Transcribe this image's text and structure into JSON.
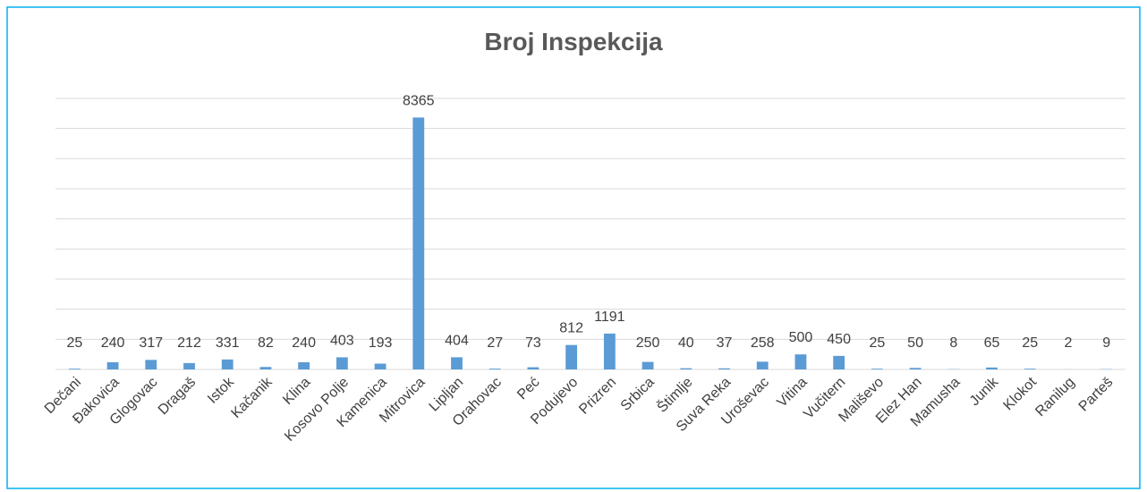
{
  "chart_data": {
    "type": "bar",
    "title": "Broj Inspekcija",
    "categories": [
      "Dečani",
      "Đakovica",
      "Glogovac",
      "Dragaš",
      "Istok",
      "Kačanik",
      "Klina",
      "Kosovo Polje",
      "Kamenica",
      "Mitrovica",
      "Lipljan",
      "Orahovac",
      "Peć",
      "Podujevo",
      "Prizren",
      "Srbica",
      "Štimlje",
      "Suva Reka",
      "Uroševac",
      "Vitina",
      "Vučitern",
      "Mališevo",
      "Elez Han",
      "Mamusha",
      "Junik",
      "Klokot",
      "Ranilug",
      "Parteš"
    ],
    "values": [
      25,
      240,
      317,
      212,
      331,
      82,
      240,
      403,
      193,
      8365,
      404,
      27,
      73,
      812,
      1191,
      250,
      40,
      37,
      258,
      500,
      450,
      25,
      50,
      8,
      65,
      25,
      2,
      9
    ],
    "color": "#5b9bd5",
    "ylim": [
      0,
      9000
    ],
    "yticks": [
      0,
      1000,
      2000,
      3000,
      4000,
      5000,
      6000,
      7000,
      8000,
      9000
    ],
    "grid": true,
    "ytick_labels": false
  }
}
